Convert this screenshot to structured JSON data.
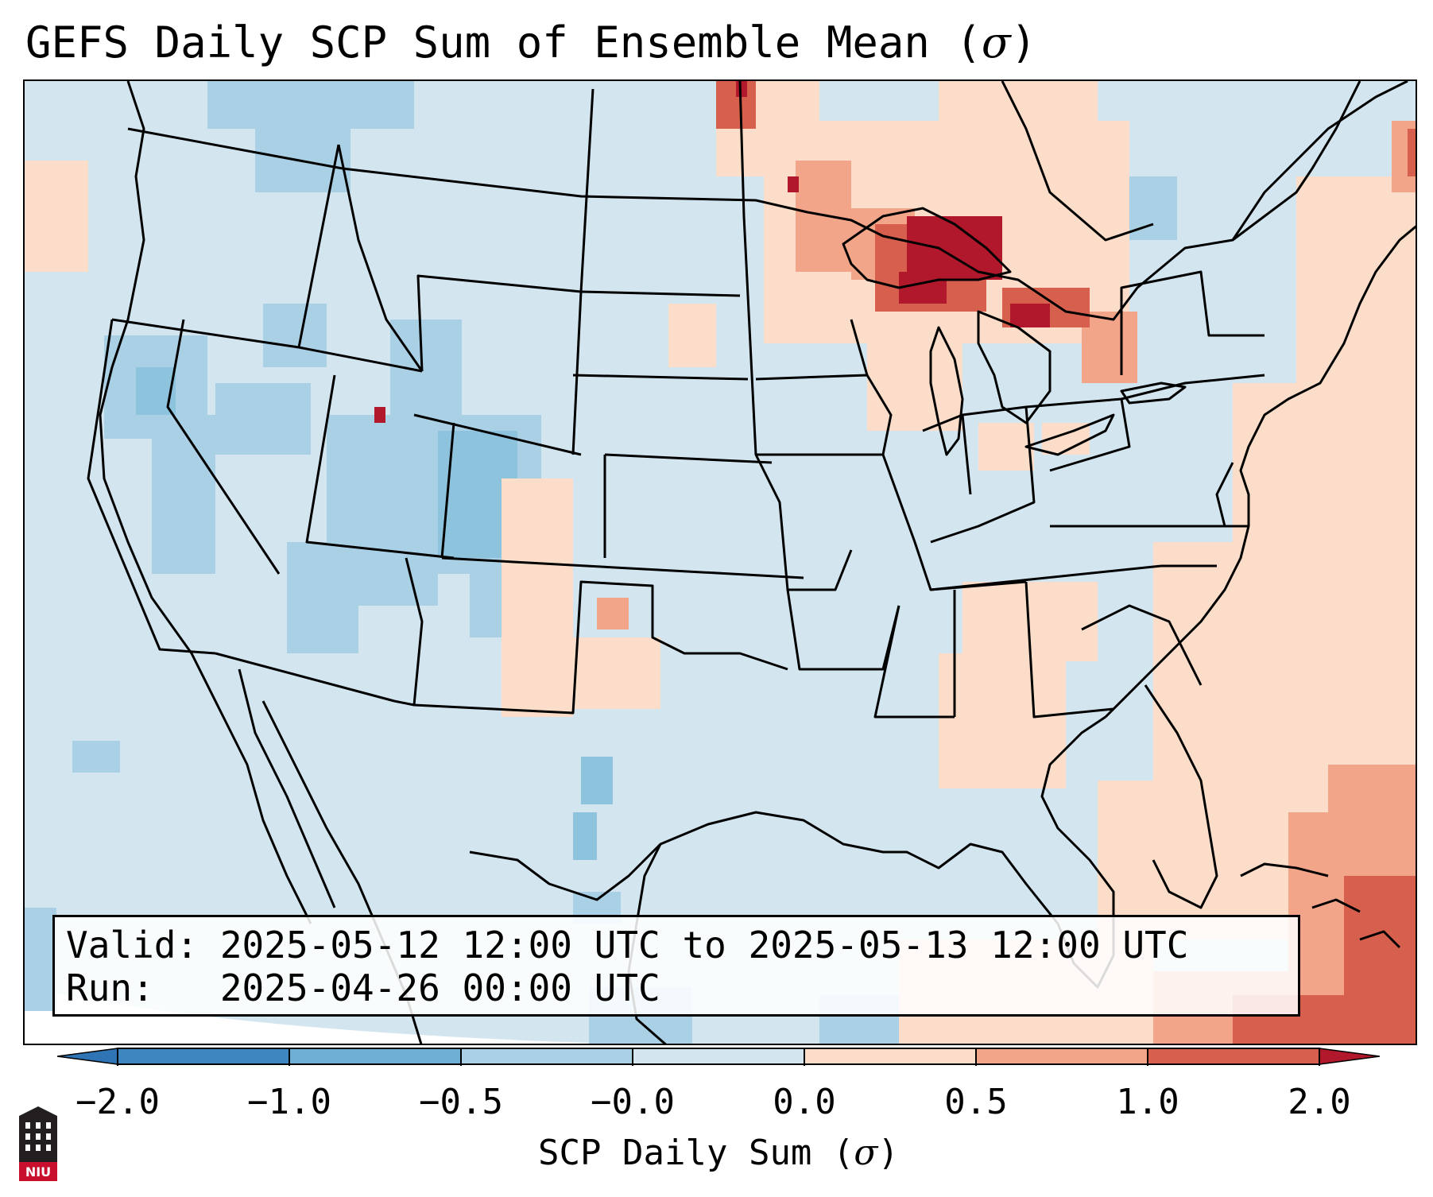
{
  "title": {
    "text": "GEFS Daily SCP Sum of Ensemble Mean (",
    "symbol": "σ",
    "close": ")"
  },
  "info": {
    "valid": "Valid: 2025-05-12 12:00 UTC to 2025-05-13 12:00 UTC",
    "run": "Run:   2025-04-26 00:00 UTC"
  },
  "colorbar": {
    "ticks": [
      "−2.0",
      "−1.0",
      "−0.5",
      "−0.0",
      "0.0",
      "0.5",
      "1.0",
      "2.0"
    ],
    "label_text": "SCP Daily Sum (",
    "label_symbol": "σ",
    "label_close": ")",
    "colors": [
      "#2f74b5",
      "#6faed4",
      "#a9d0e5",
      "#d3e6f0",
      "#fbddc9",
      "#f3a58a",
      "#d6604d",
      "#b2182b"
    ]
  },
  "map": {
    "background_color": "#d3e6f0",
    "outside_color": "#ffffff",
    "features": [
      "state-borders",
      "coastlines",
      "great-lakes"
    ],
    "anomalies": [
      {
        "region": "upper-michigan-lake-superior",
        "level": "2.0"
      },
      {
        "region": "northern-minnesota-canada",
        "level": "1.0"
      },
      {
        "region": "atlantic-bahamas",
        "level": "1.0"
      },
      {
        "region": "western-atlantic",
        "level": "0.5"
      },
      {
        "region": "tennessee-alabama",
        "level": "0.5"
      },
      {
        "region": "great-basin-colorado",
        "level": "-0.5"
      }
    ]
  },
  "logo": {
    "text": "NIU"
  }
}
